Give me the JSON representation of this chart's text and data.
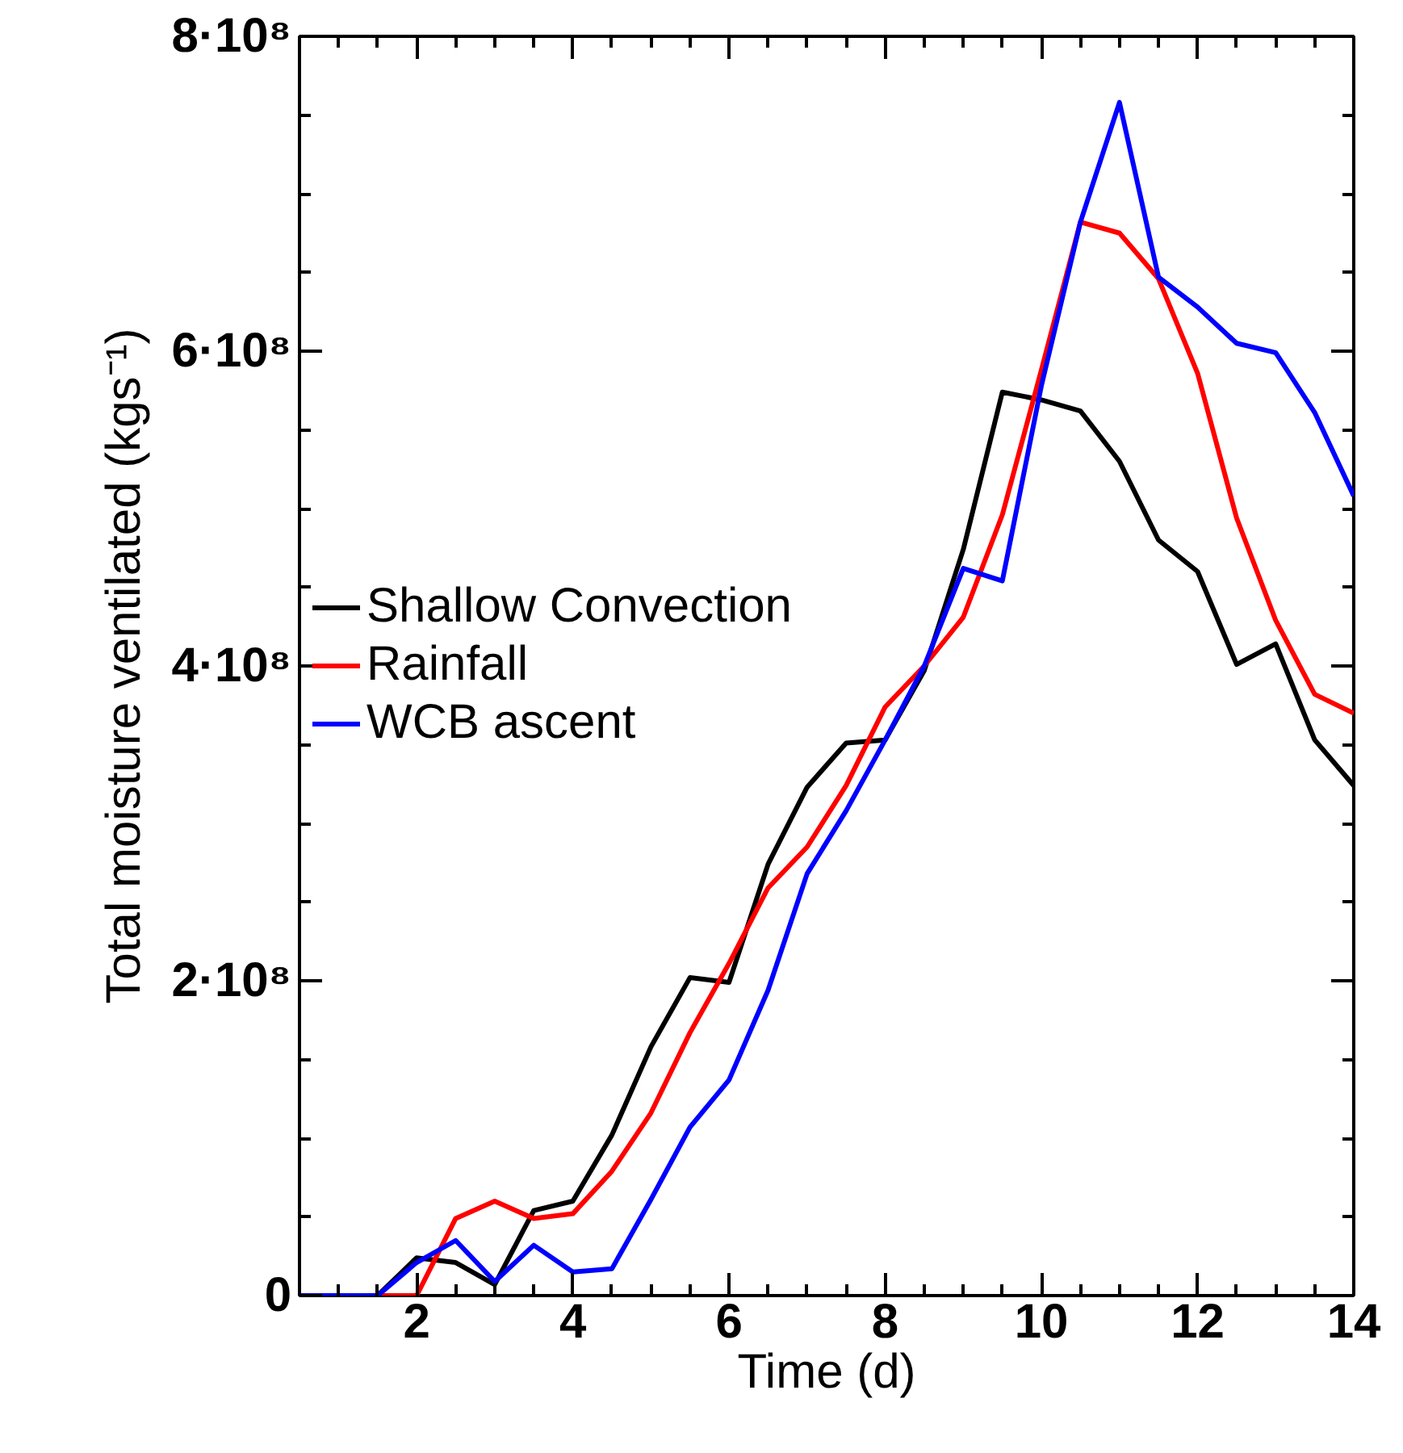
{
  "chart_data": {
    "type": "line",
    "xlabel": "Time (d)",
    "ylabel": "Total moisture ventilated (kgs⁻¹)",
    "x": [
      0.5,
      1.0,
      1.5,
      2.0,
      2.5,
      3.0,
      3.5,
      4.0,
      4.5,
      5.0,
      5.5,
      6.0,
      6.5,
      7.0,
      7.5,
      8.0,
      8.5,
      9.0,
      9.5,
      10.0,
      10.5,
      11.0,
      11.5,
      12.0,
      12.5,
      13.0,
      13.5,
      14.0
    ],
    "series": [
      {
        "name": "Shallow Convection",
        "color": "#000000",
        "values": [
          0,
          0,
          0,
          24000000,
          21000000,
          7000000,
          54000000,
          60000000,
          102000000,
          158000000,
          202000000,
          199000000,
          274000000,
          323000000,
          351000000,
          353000000,
          397000000,
          474000000,
          574000000,
          569000000,
          562000000,
          530000000,
          480000000,
          460000000,
          401000000,
          414000000,
          353000000,
          324000000
        ]
      },
      {
        "name": "Rainfall",
        "color": "#ff0000",
        "values": [
          0,
          0,
          0,
          0,
          49000000,
          60000000,
          49000000,
          52000000,
          79000000,
          116000000,
          167000000,
          211000000,
          259000000,
          285000000,
          324000000,
          374000000,
          400000000,
          431000000,
          496000000,
          588000000,
          682000000,
          675000000,
          646000000,
          586000000,
          494000000,
          429000000,
          382000000,
          370000000
        ]
      },
      {
        "name": "WCB ascent",
        "color": "#0000ff",
        "values": [
          0,
          0,
          0,
          21000000,
          35000000,
          9000000,
          32000000,
          15000000,
          17000000,
          61000000,
          107000000,
          137000000,
          194000000,
          268000000,
          308000000,
          353000000,
          400000000,
          462000000,
          454000000,
          578000000,
          682000000,
          758000000,
          647000000,
          628000000,
          605000000,
          599000000,
          561000000,
          508000000
        ]
      }
    ],
    "xlim": [
      0.5,
      14
    ],
    "xticks": [
      2,
      4,
      6,
      8,
      10,
      12,
      14
    ],
    "ylim": [
      0,
      800000000
    ],
    "yticks": [
      {
        "value": 0,
        "label": "0"
      },
      {
        "value": 200000000,
        "label": "2·10⁸"
      },
      {
        "value": 400000000,
        "label": "4·10⁸"
      },
      {
        "value": 600000000,
        "label": "6·10⁸"
      },
      {
        "value": 800000000,
        "label": "8·10⁸"
      }
    ],
    "grid": false,
    "legend": "left",
    "marker": "none",
    "line_style": "solid"
  }
}
